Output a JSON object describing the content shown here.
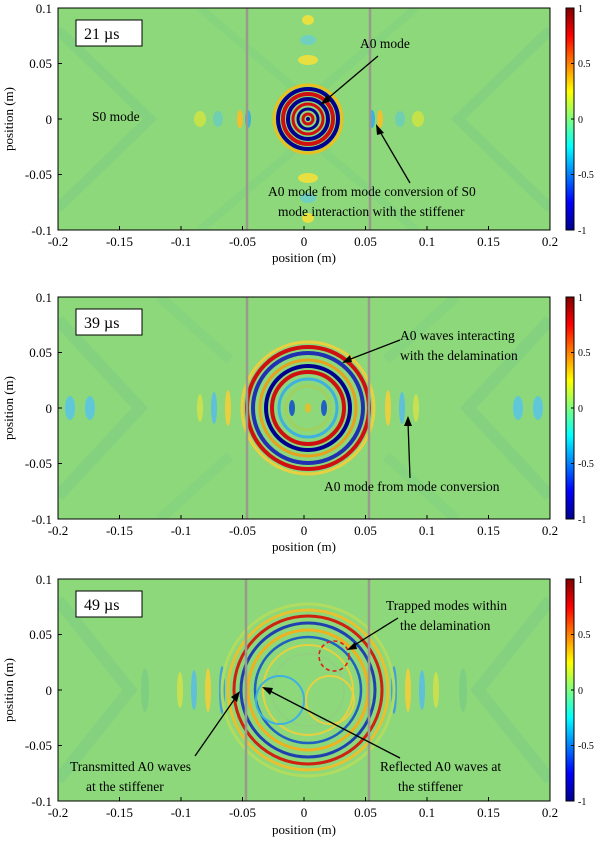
{
  "figure": {
    "xlabel": "position (m)",
    "ylabel": "position (m)",
    "x_ticks": [
      "-0.2",
      "-0.15",
      "-0.1",
      "-0.05",
      "0",
      "0.05",
      "0.1",
      "0.15",
      "0.2"
    ],
    "y_ticks": [
      "0.1",
      "0.05",
      "0",
      "-0.05",
      "-0.1"
    ],
    "colorbar_ticks": [
      "1",
      "0.5",
      "0",
      "-0.5",
      "-1"
    ],
    "colors": {
      "background": "#8cd87a",
      "stiffener": "#9a9a8c",
      "delamination": "#e0201a"
    }
  },
  "panels": [
    {
      "time": "21 µs",
      "annotations": [
        {
          "lines": [
            "A0 mode"
          ]
        },
        {
          "lines": [
            "S0 mode"
          ]
        },
        {
          "lines": [
            "A0 mode from mode conversion of S0",
            "mode interaction with the stiffener"
          ]
        }
      ]
    },
    {
      "time": "39 µs",
      "annotations": [
        {
          "lines": [
            "A0 waves interacting",
            "with the delamination"
          ]
        },
        {
          "lines": [
            "A0 mode from mode conversion"
          ]
        }
      ]
    },
    {
      "time": "49 µs",
      "annotations": [
        {
          "lines": [
            "Trapped modes within",
            "the delamination"
          ]
        },
        {
          "lines": [
            "Transmitted A0 waves",
            "at the stiffener"
          ]
        },
        {
          "lines": [
            "Reflected A0 waves at",
            "the stiffener"
          ]
        }
      ]
    }
  ],
  "chart_data": [
    {
      "type": "heatmap",
      "title": "21 µs",
      "xlabel": "position (m)",
      "ylabel": "position (m)",
      "xlim": [
        -0.2,
        0.2
      ],
      "ylim": [
        -0.1,
        0.1
      ],
      "clim": [
        -1,
        1
      ],
      "stiffeners_x": [
        -0.05,
        0.05
      ],
      "wave_rings": [
        {
          "x": 0,
          "y": 0,
          "radius_max": 0.022
        }
      ]
    },
    {
      "type": "heatmap",
      "title": "39 µs",
      "xlabel": "position (m)",
      "ylabel": "position (m)",
      "xlim": [
        -0.2,
        0.2
      ],
      "ylim": [
        -0.1,
        0.1
      ],
      "clim": [
        -1,
        1
      ],
      "stiffeners_x": [
        -0.05,
        0.05
      ],
      "wave_rings": [
        {
          "x": 0,
          "y": 0,
          "radius_max": 0.05
        }
      ]
    },
    {
      "type": "heatmap",
      "title": "49 µs",
      "xlabel": "position (m)",
      "ylabel": "position (m)",
      "xlim": [
        -0.2,
        0.2
      ],
      "ylim": [
        -0.1,
        0.1
      ],
      "clim": [
        -1,
        1
      ],
      "stiffeners_x": [
        -0.05,
        0.05
      ],
      "wave_rings": [
        {
          "x": 0,
          "y": 0,
          "radius_max": 0.06
        }
      ],
      "delamination": {
        "x": 0.02,
        "y": 0.027,
        "radius": 0.012
      }
    }
  ]
}
